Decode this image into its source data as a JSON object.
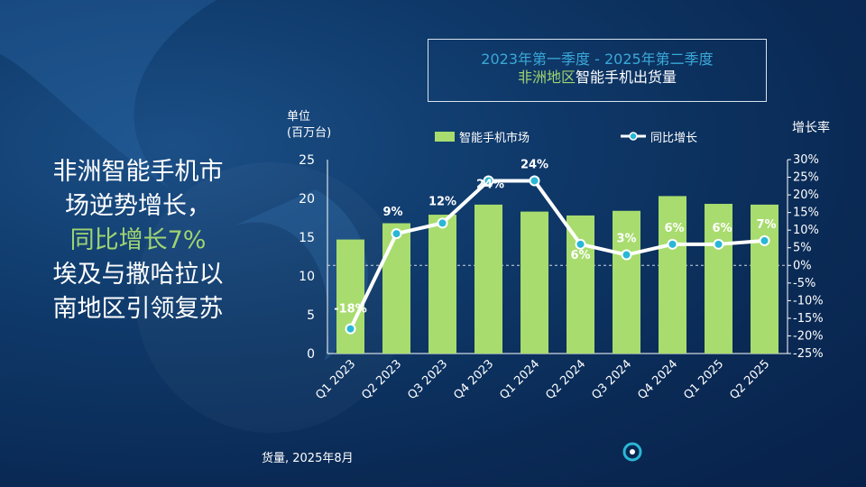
{
  "headline": {
    "line1": "非洲智能手机市",
    "line2": "场逆势增长，",
    "line3": "同比增长7%",
    "line4": "埃及与撒哈拉以",
    "line5": "南地区引领复苏"
  },
  "title_box": {
    "line1": "2023年第一季度 - 2025年第二季度",
    "line2_highlight": "非洲地区",
    "line2_rest": "智能手机出货量"
  },
  "source_text": "货量, 2025年8月",
  "colors": {
    "bar": "#a8dc6e",
    "line": "#ffffff",
    "marker": "#2ab7d6",
    "headline_highlight": "#9fd472",
    "title_line1": "#3aa8d8"
  },
  "chart_data": {
    "type": "bar",
    "categories": [
      "Q1 2023",
      "Q2 2023",
      "Q3 2023",
      "Q4 2023",
      "Q1 2024",
      "Q2 2024",
      "Q3 2024",
      "Q4 2024",
      "Q1 2025",
      "Q2 2025"
    ],
    "series": [
      {
        "name": "智能手机市场",
        "type": "bar",
        "axis": "left",
        "values": [
          14.7,
          16.8,
          17.9,
          19.2,
          18.3,
          17.8,
          18.4,
          20.3,
          19.3,
          19.2
        ]
      },
      {
        "name": "同比增长",
        "type": "line",
        "axis": "right",
        "values": [
          -18,
          9,
          12,
          24,
          24,
          6,
          3,
          6,
          6,
          7
        ],
        "labels": [
          "-18%",
          "9%",
          "12%",
          "24%",
          "24%",
          "6%",
          "3%",
          "6%",
          "6%",
          "7%"
        ]
      }
    ],
    "ylabel_left": [
      "单位",
      "(百万台)"
    ],
    "ylabel_right": "增长率",
    "ylim_left": [
      0,
      25
    ],
    "yticks_left": [
      "0",
      "5",
      "10",
      "15",
      "20",
      "25"
    ],
    "ylim_right": [
      -25,
      30
    ],
    "yticks_right": [
      "-25%",
      "-20%",
      "-15%",
      "-10%",
      "-5%",
      "0%",
      "5%",
      "10%",
      "15%",
      "20%",
      "25%",
      "30%"
    ],
    "legend_position": "top",
    "zero_line": "dashed"
  }
}
